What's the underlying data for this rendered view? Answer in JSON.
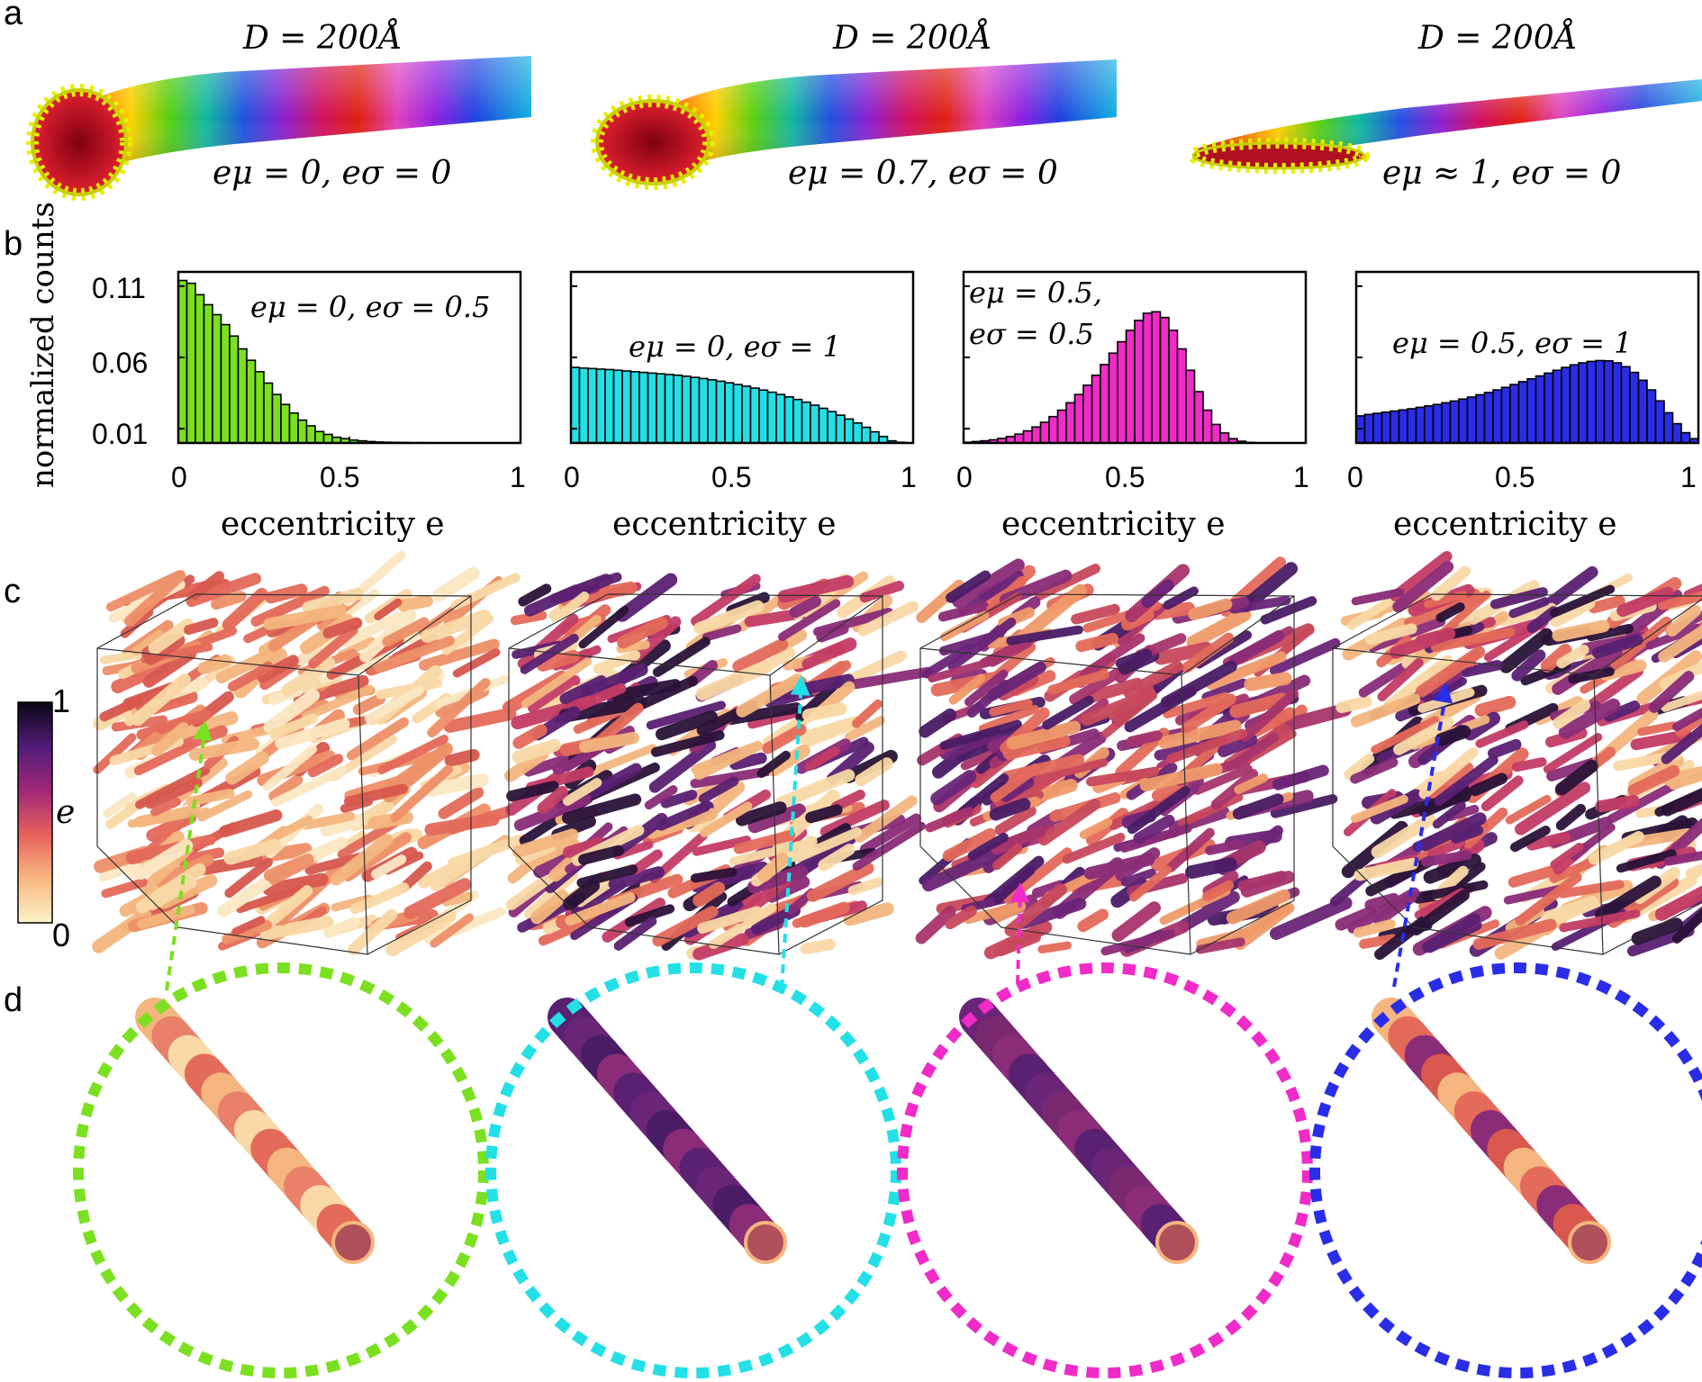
{
  "panel_labels": [
    "a",
    "b",
    "c",
    "d"
  ],
  "panel_a": {
    "tubes": [
      {
        "diameter": "D = 200Å",
        "params": "eμ = 0, eσ = 0"
      },
      {
        "diameter": "D = 200Å",
        "params": "eμ = 0.7, eσ = 0"
      },
      {
        "diameter": "D = 200Å",
        "params": "eμ ≈ 1, eσ = 0"
      }
    ]
  },
  "panel_c": {
    "colorbar": {
      "label": "e",
      "max_label": "1",
      "min_label": "0"
    }
  },
  "colors": {
    "green": "#7be01f",
    "cyan": "#22e0e6",
    "magenta": "#f02bc8",
    "blue": "#2a2de8"
  },
  "chart_data": [
    {
      "type": "bar",
      "color": "#7be01f",
      "annotation": "eμ = 0, eσ = 0.5",
      "ylabel": "normalized counts",
      "xlabel": "eccentricity e",
      "xticks": [
        "0",
        "0.5",
        "1"
      ],
      "yticks": [
        "0.11",
        "0.06",
        "0.01"
      ],
      "xlim": [
        0,
        1
      ],
      "ylim": [
        0,
        0.12
      ],
      "values": [
        0.114,
        0.112,
        0.104,
        0.097,
        0.09,
        0.083,
        0.075,
        0.066,
        0.058,
        0.05,
        0.042,
        0.034,
        0.027,
        0.021,
        0.016,
        0.012,
        0.008,
        0.006,
        0.004,
        0.003,
        0.002,
        0.0015,
        0.001,
        0.0007,
        0.0005,
        0.0004,
        0.0003,
        0.0002,
        0.0002,
        0.0001,
        0.0001,
        0.0001,
        0,
        0,
        0,
        0,
        0,
        0,
        0,
        0
      ]
    },
    {
      "type": "bar",
      "color": "#22e0e6",
      "annotation": "eμ = 0, eσ = 1",
      "xlabel": "eccentricity e",
      "xticks": [
        "0",
        "0.5",
        "1"
      ],
      "xlim": [
        0,
        1
      ],
      "ylim": [
        0,
        0.12
      ],
      "values": [
        0.053,
        0.0525,
        0.0522,
        0.0518,
        0.0515,
        0.051,
        0.0505,
        0.05,
        0.0495,
        0.049,
        0.0485,
        0.048,
        0.0475,
        0.0468,
        0.046,
        0.0452,
        0.0443,
        0.0433,
        0.0422,
        0.041,
        0.0398,
        0.0385,
        0.0371,
        0.0356,
        0.034,
        0.0323,
        0.0305,
        0.0286,
        0.0265,
        0.0243,
        0.022,
        0.0195,
        0.0168,
        0.014,
        0.011,
        0.0078,
        0.0045,
        0.0015,
        0.0005,
        0.0001
      ]
    },
    {
      "type": "bar",
      "color": "#f02bc8",
      "annotation_lines": [
        "eμ = 0.5,",
        "eσ = 0.5"
      ],
      "xlabel": "eccentricity e",
      "xticks": [
        "0",
        "0.5",
        "1"
      ],
      "xlim": [
        0,
        1
      ],
      "ylim": [
        0,
        0.12
      ],
      "values": [
        0.0005,
        0.001,
        0.0015,
        0.0022,
        0.0032,
        0.0045,
        0.0062,
        0.0085,
        0.0112,
        0.0145,
        0.0185,
        0.023,
        0.0282,
        0.034,
        0.0405,
        0.0475,
        0.055,
        0.063,
        0.071,
        0.079,
        0.086,
        0.091,
        0.092,
        0.088,
        0.079,
        0.066,
        0.051,
        0.036,
        0.023,
        0.013,
        0.007,
        0.003,
        0.0012,
        0.0004,
        0.0001,
        0,
        0,
        0,
        0,
        0
      ]
    },
    {
      "type": "bar",
      "color": "#2a2de8",
      "annotation": "eμ = 0.5, eσ = 1",
      "xlabel": "eccentricity e",
      "xticks": [
        "0",
        "0.5",
        "1"
      ],
      "xlim": [
        0,
        1
      ],
      "ylim": [
        0,
        0.12
      ],
      "values": [
        0.019,
        0.02,
        0.0208,
        0.0216,
        0.0224,
        0.0232,
        0.024,
        0.025,
        0.026,
        0.027,
        0.0282,
        0.0294,
        0.0308,
        0.0322,
        0.0338,
        0.0354,
        0.0372,
        0.039,
        0.041,
        0.043,
        0.045,
        0.047,
        0.049,
        0.051,
        0.053,
        0.0548,
        0.0562,
        0.0572,
        0.0578,
        0.0576,
        0.0562,
        0.0535,
        0.0495,
        0.044,
        0.0372,
        0.0295,
        0.0212,
        0.0135,
        0.0072,
        0.003
      ]
    }
  ]
}
